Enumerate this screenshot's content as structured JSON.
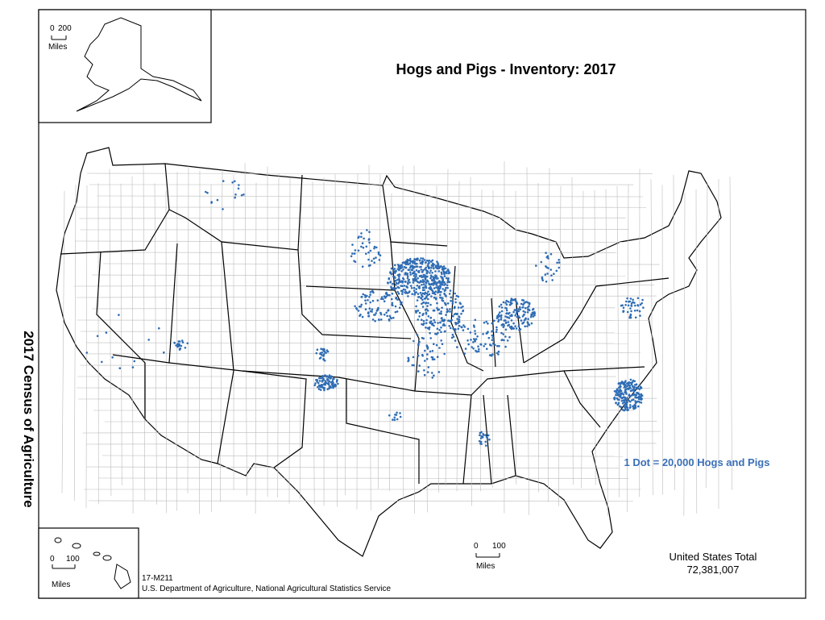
{
  "title": "Hogs and Pigs - Inventory:  2017",
  "side_label": "2017 Census of Agriculture",
  "legend": "1 Dot = 20,000 Hogs and Pigs",
  "alaska_inset": {
    "scale": {
      "start": "0",
      "end": "200",
      "unit": "Miles"
    }
  },
  "hawaii_inset": {
    "scale": {
      "start": "0",
      "end": "100",
      "unit": "Miles"
    }
  },
  "main_scale": {
    "start": "0",
    "end": "100",
    "unit": "Miles"
  },
  "footer": {
    "code": "17-M211",
    "agency": "U.S. Department of Agriculture, National Agricultural Statistics Service"
  },
  "total": {
    "label": "United States Total",
    "value": "72,381,007"
  }
}
